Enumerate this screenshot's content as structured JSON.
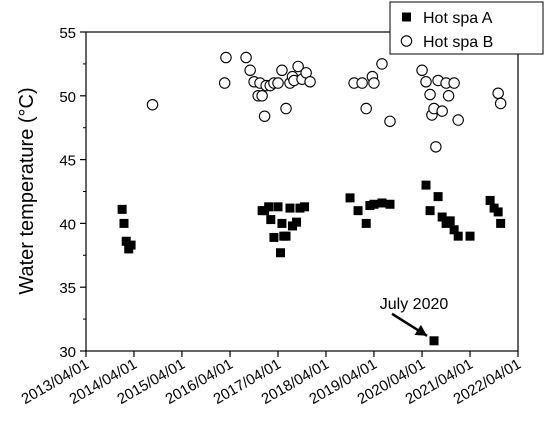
{
  "chart_data": {
    "type": "scatter",
    "title": "",
    "xlabel": "",
    "ylabel": "Water temperature (°C)",
    "x_tick_labels": [
      "2013/04/01",
      "2014/04/01",
      "2015/04/01",
      "2016/04/01",
      "2017/04/01",
      "2018/04/01",
      "2019/04/01",
      "2020/04/01",
      "2021/04/01",
      "2022/04/01"
    ],
    "xlim": [
      "2013/04/01",
      "2022/04/01"
    ],
    "ylim": [
      30,
      55
    ],
    "y_ticks": [
      30,
      35,
      40,
      45,
      50,
      55
    ],
    "grid": false,
    "legend_position": "top-right",
    "series": [
      {
        "name": "Hot spa A",
        "marker": "filled-square",
        "color": "#000000",
        "points": [
          {
            "x": "2014/01/01",
            "y": 41.1
          },
          {
            "x": "2014/01/15",
            "y": 40.0
          },
          {
            "x": "2014/02/01",
            "y": 38.6
          },
          {
            "x": "2014/02/20",
            "y": 38.0
          },
          {
            "x": "2014/03/10",
            "y": 38.3
          },
          {
            "x": "2016/12/01",
            "y": 41.0
          },
          {
            "x": "2016/12/20",
            "y": 41.0
          },
          {
            "x": "2017/01/20",
            "y": 41.3
          },
          {
            "x": "2017/02/05",
            "y": 40.3
          },
          {
            "x": "2017/03/01",
            "y": 38.9
          },
          {
            "x": "2017/04/01",
            "y": 41.3
          },
          {
            "x": "2017/04/20",
            "y": 37.7
          },
          {
            "x": "2017/05/01",
            "y": 40.0
          },
          {
            "x": "2017/05/15",
            "y": 39.0
          },
          {
            "x": "2017/06/01",
            "y": 39.0
          },
          {
            "x": "2017/07/01",
            "y": 41.2
          },
          {
            "x": "2017/07/20",
            "y": 39.8
          },
          {
            "x": "2017/08/20",
            "y": 40.1
          },
          {
            "x": "2017/09/15",
            "y": 41.2
          },
          {
            "x": "2017/10/20",
            "y": 41.3
          },
          {
            "x": "2018/10/01",
            "y": 42.0
          },
          {
            "x": "2018/12/01",
            "y": 41.0
          },
          {
            "x": "2019/02/01",
            "y": 40.0
          },
          {
            "x": "2019/03/01",
            "y": 41.4
          },
          {
            "x": "2019/04/01",
            "y": 41.5
          },
          {
            "x": "2019/06/01",
            "y": 41.6
          },
          {
            "x": "2019/08/01",
            "y": 41.5
          },
          {
            "x": "2020/05/01",
            "y": 43.0
          },
          {
            "x": "2020/06/01",
            "y": 41.0
          },
          {
            "x": "2020/07/01",
            "y": 30.8
          },
          {
            "x": "2020/08/01",
            "y": 42.1
          },
          {
            "x": "2020/09/01",
            "y": 40.5
          },
          {
            "x": "2020/10/01",
            "y": 40.0
          },
          {
            "x": "2020/11/01",
            "y": 40.2
          },
          {
            "x": "2020/12/01",
            "y": 39.5
          },
          {
            "x": "2021/01/01",
            "y": 39.0
          },
          {
            "x": "2021/04/01",
            "y": 39.0
          },
          {
            "x": "2021/09/01",
            "y": 41.8
          },
          {
            "x": "2021/10/01",
            "y": 41.2
          },
          {
            "x": "2021/11/01",
            "y": 40.9
          },
          {
            "x": "2021/11/20",
            "y": 40.0
          }
        ]
      },
      {
        "name": "Hot spa B",
        "marker": "open-circle",
        "color": "#000000",
        "points": [
          {
            "x": "2014/08/20",
            "y": 49.3
          },
          {
            "x": "2016/02/20",
            "y": 51.0
          },
          {
            "x": "2016/03/01",
            "y": 53.0
          },
          {
            "x": "2016/08/01",
            "y": 53.0
          },
          {
            "x": "2016/09/01",
            "y": 52.0
          },
          {
            "x": "2016/10/01",
            "y": 51.1
          },
          {
            "x": "2016/11/01",
            "y": 50.0
          },
          {
            "x": "2016/11/15",
            "y": 51.0
          },
          {
            "x": "2016/12/01",
            "y": 50.0
          },
          {
            "x": "2016/12/20",
            "y": 48.4
          },
          {
            "x": "2017/01/01",
            "y": 50.8
          },
          {
            "x": "2017/02/01",
            "y": 50.8
          },
          {
            "x": "2017/03/01",
            "y": 51.0
          },
          {
            "x": "2017/04/01",
            "y": 51.0
          },
          {
            "x": "2017/05/01",
            "y": 52.0
          },
          {
            "x": "2017/06/01",
            "y": 49.0
          },
          {
            "x": "2017/07/01",
            "y": 51.0
          },
          {
            "x": "2017/07/20",
            "y": 51.5
          },
          {
            "x": "2017/08/01",
            "y": 51.2
          },
          {
            "x": "2017/09/01",
            "y": 52.3
          },
          {
            "x": "2017/10/01",
            "y": 51.3
          },
          {
            "x": "2017/11/01",
            "y": 51.8
          },
          {
            "x": "2017/12/01",
            "y": 51.1
          },
          {
            "x": "2018/11/01",
            "y": 51.0
          },
          {
            "x": "2019/01/01",
            "y": 51.0
          },
          {
            "x": "2019/02/01",
            "y": 49.0
          },
          {
            "x": "2019/03/20",
            "y": 51.5
          },
          {
            "x": "2019/04/01",
            "y": 51.0
          },
          {
            "x": "2019/06/01",
            "y": 52.5
          },
          {
            "x": "2019/08/01",
            "y": 48.0
          },
          {
            "x": "2020/04/01",
            "y": 52.0
          },
          {
            "x": "2020/05/01",
            "y": 51.1
          },
          {
            "x": "2020/06/01",
            "y": 50.1
          },
          {
            "x": "2020/06/15",
            "y": 48.5
          },
          {
            "x": "2020/07/01",
            "y": 49.0
          },
          {
            "x": "2020/07/15",
            "y": 46.0
          },
          {
            "x": "2020/08/01",
            "y": 51.2
          },
          {
            "x": "2020/09/01",
            "y": 48.8
          },
          {
            "x": "2020/10/01",
            "y": 51.0
          },
          {
            "x": "2020/10/20",
            "y": 50.0
          },
          {
            "x": "2020/12/01",
            "y": 51.0
          },
          {
            "x": "2021/01/01",
            "y": 48.1
          },
          {
            "x": "2021/11/01",
            "y": 50.2
          },
          {
            "x": "2021/11/20",
            "y": 49.4
          }
        ]
      }
    ],
    "annotations": [
      {
        "text": "July 2020",
        "points_to": {
          "x": "2020/07/01",
          "y": 30.8
        }
      }
    ]
  }
}
